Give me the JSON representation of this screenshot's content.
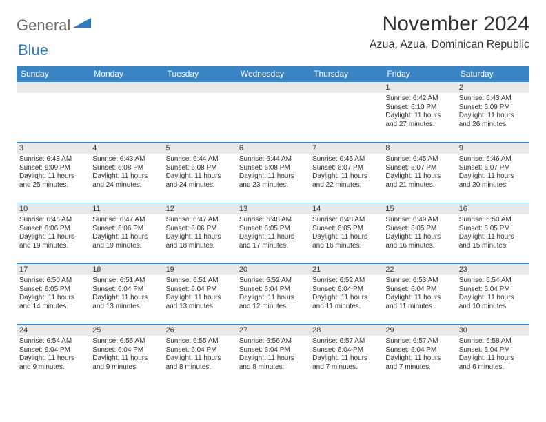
{
  "brand": {
    "part1": "General",
    "part2": "Blue"
  },
  "title": "November 2024",
  "location": "Azua, Azua, Dominican Republic",
  "colors": {
    "header_bg": "#3b84c4",
    "header_text": "#ffffff",
    "daynum_bg": "#e9e9e9",
    "border": "#3b84c4",
    "text": "#333333",
    "logo_gray": "#6b6b6b",
    "logo_blue": "#2f7bbf",
    "page_bg": "#ffffff"
  },
  "weekdays": [
    "Sunday",
    "Monday",
    "Tuesday",
    "Wednesday",
    "Thursday",
    "Friday",
    "Saturday"
  ],
  "weeks": [
    [
      null,
      null,
      null,
      null,
      null,
      {
        "n": "1",
        "sr": "6:42 AM",
        "ss": "6:10 PM",
        "dl": "11 hours and 27 minutes."
      },
      {
        "n": "2",
        "sr": "6:43 AM",
        "ss": "6:09 PM",
        "dl": "11 hours and 26 minutes."
      }
    ],
    [
      {
        "n": "3",
        "sr": "6:43 AM",
        "ss": "6:09 PM",
        "dl": "11 hours and 25 minutes."
      },
      {
        "n": "4",
        "sr": "6:43 AM",
        "ss": "6:08 PM",
        "dl": "11 hours and 24 minutes."
      },
      {
        "n": "5",
        "sr": "6:44 AM",
        "ss": "6:08 PM",
        "dl": "11 hours and 24 minutes."
      },
      {
        "n": "6",
        "sr": "6:44 AM",
        "ss": "6:08 PM",
        "dl": "11 hours and 23 minutes."
      },
      {
        "n": "7",
        "sr": "6:45 AM",
        "ss": "6:07 PM",
        "dl": "11 hours and 22 minutes."
      },
      {
        "n": "8",
        "sr": "6:45 AM",
        "ss": "6:07 PM",
        "dl": "11 hours and 21 minutes."
      },
      {
        "n": "9",
        "sr": "6:46 AM",
        "ss": "6:07 PM",
        "dl": "11 hours and 20 minutes."
      }
    ],
    [
      {
        "n": "10",
        "sr": "6:46 AM",
        "ss": "6:06 PM",
        "dl": "11 hours and 19 minutes."
      },
      {
        "n": "11",
        "sr": "6:47 AM",
        "ss": "6:06 PM",
        "dl": "11 hours and 19 minutes."
      },
      {
        "n": "12",
        "sr": "6:47 AM",
        "ss": "6:06 PM",
        "dl": "11 hours and 18 minutes."
      },
      {
        "n": "13",
        "sr": "6:48 AM",
        "ss": "6:05 PM",
        "dl": "11 hours and 17 minutes."
      },
      {
        "n": "14",
        "sr": "6:48 AM",
        "ss": "6:05 PM",
        "dl": "11 hours and 16 minutes."
      },
      {
        "n": "15",
        "sr": "6:49 AM",
        "ss": "6:05 PM",
        "dl": "11 hours and 16 minutes."
      },
      {
        "n": "16",
        "sr": "6:50 AM",
        "ss": "6:05 PM",
        "dl": "11 hours and 15 minutes."
      }
    ],
    [
      {
        "n": "17",
        "sr": "6:50 AM",
        "ss": "6:05 PM",
        "dl": "11 hours and 14 minutes."
      },
      {
        "n": "18",
        "sr": "6:51 AM",
        "ss": "6:04 PM",
        "dl": "11 hours and 13 minutes."
      },
      {
        "n": "19",
        "sr": "6:51 AM",
        "ss": "6:04 PM",
        "dl": "11 hours and 13 minutes."
      },
      {
        "n": "20",
        "sr": "6:52 AM",
        "ss": "6:04 PM",
        "dl": "11 hours and 12 minutes."
      },
      {
        "n": "21",
        "sr": "6:52 AM",
        "ss": "6:04 PM",
        "dl": "11 hours and 11 minutes."
      },
      {
        "n": "22",
        "sr": "6:53 AM",
        "ss": "6:04 PM",
        "dl": "11 hours and 11 minutes."
      },
      {
        "n": "23",
        "sr": "6:54 AM",
        "ss": "6:04 PM",
        "dl": "11 hours and 10 minutes."
      }
    ],
    [
      {
        "n": "24",
        "sr": "6:54 AM",
        "ss": "6:04 PM",
        "dl": "11 hours and 9 minutes."
      },
      {
        "n": "25",
        "sr": "6:55 AM",
        "ss": "6:04 PM",
        "dl": "11 hours and 9 minutes."
      },
      {
        "n": "26",
        "sr": "6:55 AM",
        "ss": "6:04 PM",
        "dl": "11 hours and 8 minutes."
      },
      {
        "n": "27",
        "sr": "6:56 AM",
        "ss": "6:04 PM",
        "dl": "11 hours and 8 minutes."
      },
      {
        "n": "28",
        "sr": "6:57 AM",
        "ss": "6:04 PM",
        "dl": "11 hours and 7 minutes."
      },
      {
        "n": "29",
        "sr": "6:57 AM",
        "ss": "6:04 PM",
        "dl": "11 hours and 7 minutes."
      },
      {
        "n": "30",
        "sr": "6:58 AM",
        "ss": "6:04 PM",
        "dl": "11 hours and 6 minutes."
      }
    ]
  ],
  "labels": {
    "sunrise": "Sunrise:",
    "sunset": "Sunset:",
    "daylight": "Daylight:"
  }
}
